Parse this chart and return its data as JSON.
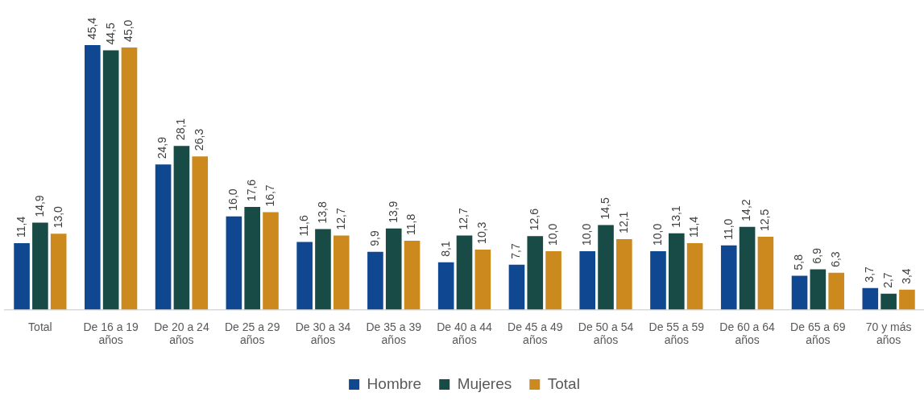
{
  "chart_data": {
    "type": "bar",
    "categories": [
      "Total",
      "De 16 a 19 años",
      "De 20 a 24 años",
      "De 25 a 29 años",
      "De 30 a 34 años",
      "De 35 a 39 años",
      "De 40 a 44 años",
      "De 45 a 49 años",
      "De 50 a 54 años",
      "De 55 a 59 años",
      "De 60 a 64 años",
      "De 65 a 69 años",
      "70 y más años"
    ],
    "series": [
      {
        "name": "Hombre",
        "color": "#104791",
        "values": [
          11.4,
          45.4,
          24.9,
          16.0,
          11.6,
          9.9,
          8.1,
          7.7,
          10.0,
          10.0,
          11.0,
          5.8,
          3.7
        ],
        "value_labels": [
          "11,4",
          "45,4",
          "24,9",
          "16,0",
          "11,6",
          "9,9",
          "8,1",
          "7,7",
          "10,0",
          "10,0",
          "11,0",
          "5,8",
          "3,7"
        ]
      },
      {
        "name": "Mujeres",
        "color": "#184b45",
        "values": [
          14.9,
          44.5,
          28.1,
          17.6,
          13.8,
          13.9,
          12.7,
          12.6,
          14.5,
          13.1,
          14.2,
          6.9,
          2.7
        ],
        "value_labels": [
          "14,9",
          "44,5",
          "28,1",
          "17,6",
          "13,8",
          "13,9",
          "12,7",
          "12,6",
          "14,5",
          "13,1",
          "14,2",
          "6,9",
          "2,7"
        ]
      },
      {
        "name": "Total",
        "color": "#cc8a1e",
        "values": [
          13.0,
          45.0,
          26.3,
          16.7,
          12.7,
          11.8,
          10.3,
          10.0,
          12.1,
          11.4,
          12.5,
          6.3,
          3.4
        ],
        "value_labels": [
          "13,0",
          "45,0",
          "26,3",
          "16,7",
          "12,7",
          "11,8",
          "10,3",
          "10,0",
          "12,1",
          "11,4",
          "12,5",
          "6,3",
          "3,4"
        ]
      }
    ],
    "legend": "bottom"
  }
}
